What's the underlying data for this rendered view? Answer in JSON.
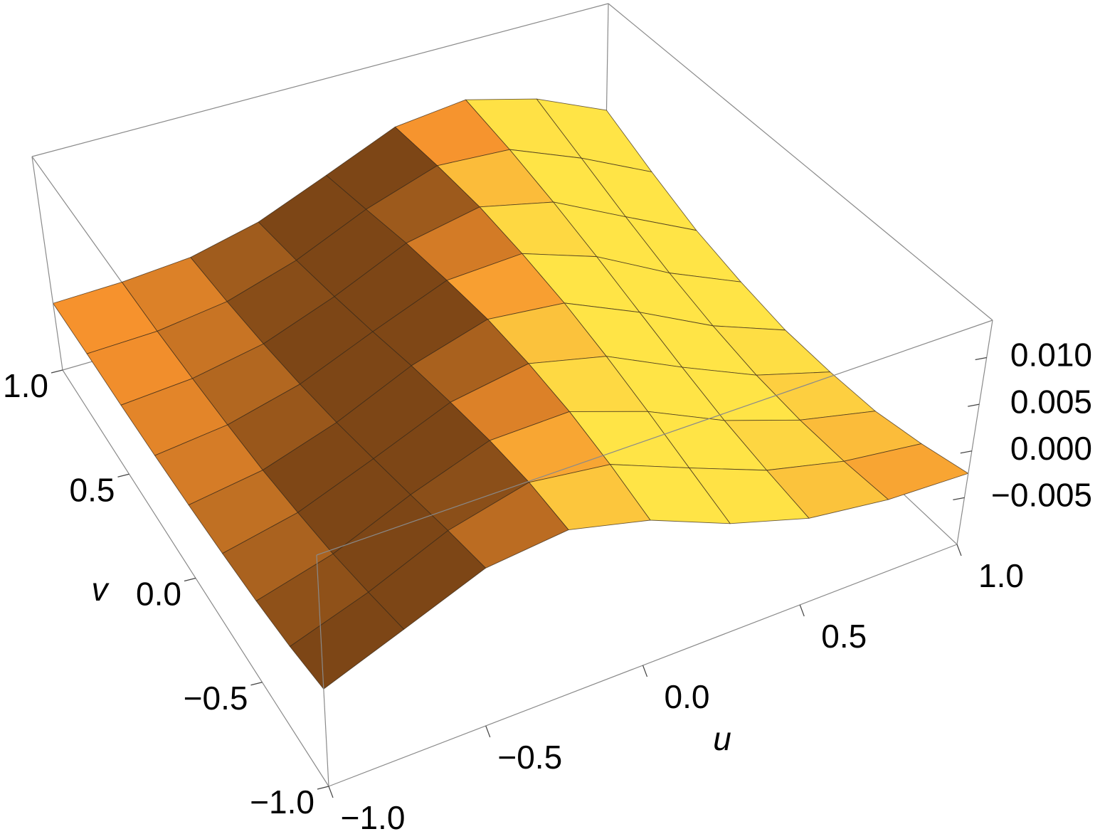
{
  "chart_data": {
    "type": "surface",
    "x_label": "u",
    "y_label": "v",
    "x": [
      -1,
      -0.75,
      -0.5,
      -0.25,
      0,
      0.25,
      0.5,
      0.75,
      1
    ],
    "y": [
      -1,
      -0.75,
      -0.5,
      -0.25,
      0,
      0.25,
      0.5,
      0.75,
      1
    ],
    "z": [
      [
        0.0001,
        0.0032,
        0.0065,
        0.0074,
        0.0053,
        0.0018,
        -0.0008,
        -0.002,
        -0.0024
      ],
      [
        -0.0008,
        0.0019,
        0.0054,
        0.0075,
        0.0064,
        0.003,
        -0.0003,
        -0.0024,
        -0.0036
      ],
      [
        -0.0014,
        0.0007,
        0.0041,
        0.007,
        0.0072,
        0.0043,
        0.0004,
        -0.0025,
        -0.0045
      ],
      [
        -0.0018,
        -0.0002,
        0.0028,
        0.0061,
        0.0075,
        0.0055,
        0.0015,
        -0.0022,
        -0.0047
      ],
      [
        -0.0021,
        -0.001,
        0.0015,
        0.005,
        0.0074,
        0.0065,
        0.0028,
        -0.0014,
        -0.0046
      ],
      [
        -0.0023,
        -0.0015,
        0.0004,
        0.0036,
        0.0067,
        0.0071,
        0.0042,
        -0.0002,
        -0.0038
      ],
      [
        -0.0024,
        -0.0019,
        -0.0005,
        0.0023,
        0.0058,
        0.0074,
        0.0055,
        0.0014,
        -0.0026
      ],
      [
        -0.0024,
        -0.0022,
        -0.0012,
        0.0011,
        0.0045,
        0.0071,
        0.0066,
        0.0033,
        -0.0006
      ],
      [
        -0.0025,
        -0.0023,
        -0.0017,
        0.0001,
        0.0032,
        0.0065,
        0.0074,
        0.0053,
        0.0018
      ]
    ],
    "xlim": [
      -1,
      1
    ],
    "ylim": [
      -1,
      1
    ],
    "zlim": [
      -0.01,
      0.014
    ],
    "xticks": [
      {
        "value": -1,
        "label": "−1.0"
      },
      {
        "value": -0.5,
        "label": "−0.5"
      },
      {
        "value": 0,
        "label": "0.0"
      },
      0.5,
      {
        "value": 1,
        "label": "1.0"
      }
    ],
    "yticks": [
      {
        "value": -1,
        "label": "−1.0"
      },
      {
        "value": -0.5,
        "label": "−0.5"
      },
      {
        "value": 0,
        "label": "0.0"
      },
      0.5,
      {
        "value": 1,
        "label": "1.0"
      }
    ],
    "zticks": [
      {
        "value": -0.005,
        "label": "−0.005"
      },
      {
        "value": 0,
        "label": "0.000"
      },
      {
        "value": 0.005,
        "label": "0.005"
      },
      {
        "value": 0.01,
        "label": "0.010"
      }
    ]
  }
}
